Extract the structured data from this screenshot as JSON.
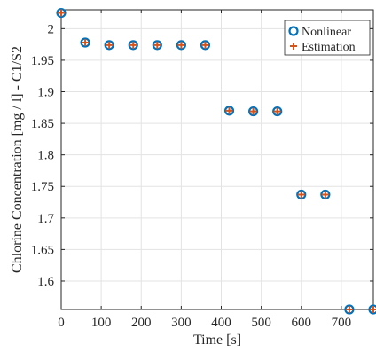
{
  "chart_data": {
    "type": "scatter",
    "xlabel": "Time [s]",
    "ylabel": "Chlorine Concentration [mg / l] - C1/S2",
    "xlim": [
      0,
      780
    ],
    "ylim": [
      1.555,
      2.03
    ],
    "xticks": [
      0,
      100,
      200,
      300,
      400,
      500,
      600,
      700
    ],
    "yticks": [
      1.6,
      1.65,
      1.7,
      1.75,
      1.8,
      1.85,
      1.9,
      1.95,
      2
    ],
    "x_tick_labels": [
      "0",
      "100",
      "200",
      "300",
      "400",
      "500",
      "600",
      "700"
    ],
    "y_tick_labels": [
      "1.6",
      "1.65",
      "1.7",
      "1.75",
      "1.8",
      "1.85",
      "1.9",
      "1.95",
      "2"
    ],
    "grid": true,
    "legend_position": "top-right",
    "series": [
      {
        "name": "Nonlinear",
        "marker": "circle",
        "color": "#0072BD",
        "x": [
          0,
          60,
          120,
          180,
          240,
          300,
          360,
          420,
          480,
          540,
          600,
          660,
          720,
          780
        ],
        "y": [
          2.025,
          1.978,
          1.974,
          1.974,
          1.974,
          1.974,
          1.974,
          1.87,
          1.869,
          1.869,
          1.737,
          1.737,
          1.555,
          1.555
        ]
      },
      {
        "name": "Estimation",
        "marker": "plus",
        "color": "#D95319",
        "x": [
          0,
          60,
          120,
          180,
          240,
          300,
          360,
          420,
          480,
          540,
          600,
          660,
          720,
          780
        ],
        "y": [
          2.025,
          1.978,
          1.974,
          1.974,
          1.974,
          1.974,
          1.974,
          1.87,
          1.869,
          1.869,
          1.737,
          1.737,
          1.555,
          1.555
        ]
      }
    ]
  }
}
